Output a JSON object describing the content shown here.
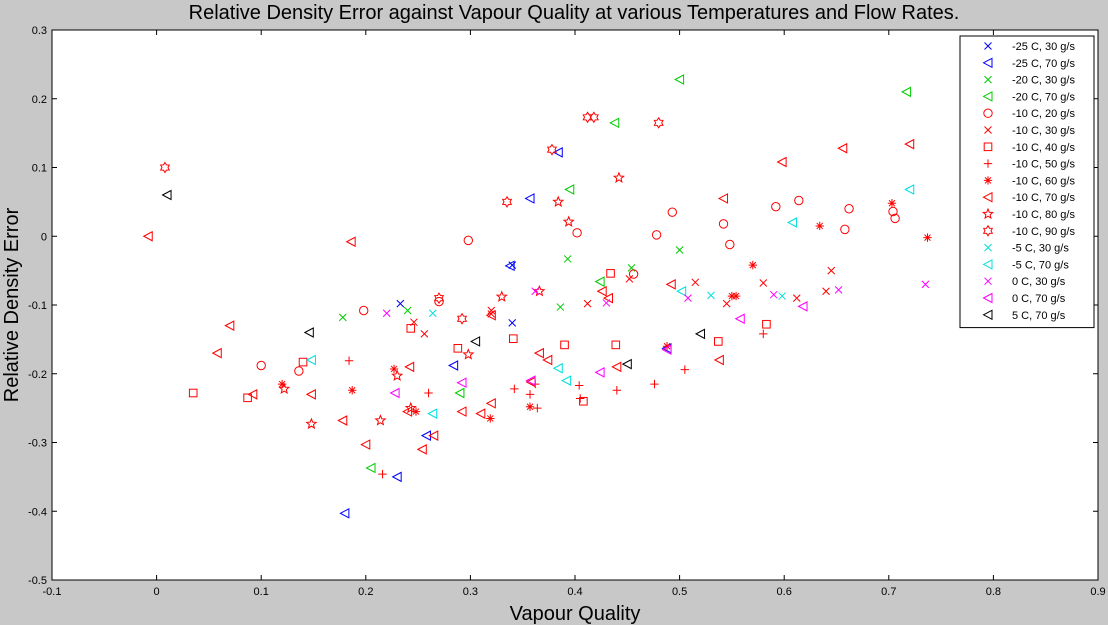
{
  "chart_data": {
    "type": "scatter",
    "title": "Relative Density Error against Vapour Quality at various Temperatures and Flow Rates.",
    "xlabel": "Vapour Quality",
    "ylabel": "Relative Density Error",
    "xlim": [
      -0.1,
      0.9
    ],
    "ylim": [
      -0.5,
      0.3
    ],
    "xticks": [
      -0.1,
      0,
      0.1,
      0.2,
      0.3,
      0.4,
      0.5,
      0.6,
      0.7,
      0.8,
      0.9
    ],
    "xtick_labels": [
      "-0.1",
      "0",
      "0.1",
      "0.2",
      "0.3",
      "0.4",
      "0.5",
      "0.6",
      "0.7",
      "0.8",
      "0.9"
    ],
    "yticks": [
      -0.5,
      -0.4,
      -0.3,
      -0.2,
      -0.1,
      0,
      0.1,
      0.2,
      0.3
    ],
    "ytick_labels": [
      "-0.5",
      "-0.4",
      "-0.3",
      "-0.2",
      "-0.1",
      "0",
      "0.1",
      "0.2",
      "0.3"
    ],
    "grid": false,
    "legend_position": "top-right",
    "series": [
      {
        "name": "-25 C, 30 g/s",
        "marker": "x",
        "color": "#0000ff",
        "points": [
          [
            0.233,
            -0.098
          ],
          [
            0.34,
            -0.126
          ],
          [
            0.34,
            -0.042
          ]
        ]
      },
      {
        "name": "-25 C, 70 g/s",
        "marker": "triangle-left",
        "color": "#0000ff",
        "points": [
          [
            0.18,
            -0.403
          ],
          [
            0.23,
            -0.35
          ],
          [
            0.258,
            -0.29
          ],
          [
            0.284,
            -0.188
          ],
          [
            0.338,
            -0.043
          ],
          [
            0.357,
            0.055
          ],
          [
            0.384,
            0.122
          ],
          [
            0.488,
            -0.163
          ]
        ]
      },
      {
        "name": "-20 C, 30 g/s",
        "marker": "x",
        "color": "#00cc00",
        "points": [
          [
            0.178,
            -0.118
          ],
          [
            0.24,
            -0.108
          ],
          [
            0.386,
            -0.103
          ],
          [
            0.393,
            -0.033
          ],
          [
            0.454,
            -0.046
          ],
          [
            0.5,
            -0.02
          ]
        ]
      },
      {
        "name": "-20 C, 70 g/s",
        "marker": "triangle-left",
        "color": "#00cc00",
        "points": [
          [
            0.205,
            -0.337
          ],
          [
            0.29,
            -0.228
          ],
          [
            0.395,
            0.068
          ],
          [
            0.424,
            -0.066
          ],
          [
            0.438,
            0.165
          ],
          [
            0.5,
            0.228
          ],
          [
            0.717,
            0.21
          ]
        ]
      },
      {
        "name": "-10 C, 20 g/s",
        "marker": "circle",
        "color": "#ff0000",
        "points": [
          [
            0.1,
            -0.188
          ],
          [
            0.136,
            -0.196
          ],
          [
            0.198,
            -0.108
          ],
          [
            0.27,
            -0.095
          ],
          [
            0.298,
            -0.006
          ],
          [
            0.402,
            0.005
          ],
          [
            0.456,
            -0.055
          ],
          [
            0.478,
            0.002
          ],
          [
            0.493,
            0.035
          ],
          [
            0.542,
            0.018
          ],
          [
            0.548,
            -0.012
          ],
          [
            0.592,
            0.043
          ],
          [
            0.614,
            0.052
          ],
          [
            0.658,
            0.01
          ],
          [
            0.662,
            0.04
          ],
          [
            0.704,
            0.036
          ],
          [
            0.706,
            0.026
          ]
        ]
      },
      {
        "name": "-10 C, 30 g/s",
        "marker": "x",
        "color": "#ff0000",
        "points": [
          [
            0.246,
            -0.125
          ],
          [
            0.256,
            -0.142
          ],
          [
            0.32,
            -0.108
          ],
          [
            0.32,
            -0.113
          ],
          [
            0.412,
            -0.098
          ],
          [
            0.452,
            -0.062
          ],
          [
            0.515,
            -0.067
          ],
          [
            0.545,
            -0.098
          ],
          [
            0.58,
            -0.068
          ],
          [
            0.612,
            -0.09
          ],
          [
            0.645,
            -0.05
          ],
          [
            0.64,
            -0.08
          ]
        ]
      },
      {
        "name": "-10 C, 40 g/s",
        "marker": "square",
        "color": "#ff0000",
        "points": [
          [
            0.035,
            -0.228
          ],
          [
            0.087,
            -0.235
          ],
          [
            0.14,
            -0.183
          ],
          [
            0.243,
            -0.134
          ],
          [
            0.288,
            -0.163
          ],
          [
            0.341,
            -0.149
          ],
          [
            0.39,
            -0.158
          ],
          [
            0.408,
            -0.24
          ],
          [
            0.434,
            -0.054
          ],
          [
            0.439,
            -0.158
          ],
          [
            0.537,
            -0.153
          ],
          [
            0.583,
            -0.128
          ]
        ]
      },
      {
        "name": "-10 C, 50 g/s",
        "marker": "plus",
        "color": "#ff0000",
        "points": [
          [
            0.184,
            -0.181
          ],
          [
            0.216,
            -0.346
          ],
          [
            0.26,
            -0.228
          ],
          [
            0.342,
            -0.222
          ],
          [
            0.357,
            -0.23
          ],
          [
            0.362,
            -0.215
          ],
          [
            0.364,
            -0.25
          ],
          [
            0.404,
            -0.217
          ],
          [
            0.405,
            -0.236
          ],
          [
            0.44,
            -0.224
          ],
          [
            0.476,
            -0.215
          ],
          [
            0.505,
            -0.194
          ],
          [
            0.58,
            -0.142
          ]
        ]
      },
      {
        "name": "-10 C, 60 g/s",
        "marker": "asterisk",
        "color": "#ff0000",
        "points": [
          [
            0.12,
            -0.215
          ],
          [
            0.187,
            -0.224
          ],
          [
            0.227,
            -0.193
          ],
          [
            0.248,
            -0.255
          ],
          [
            0.319,
            -0.265
          ],
          [
            0.357,
            -0.248
          ],
          [
            0.488,
            -0.16
          ],
          [
            0.55,
            -0.087
          ],
          [
            0.554,
            -0.087
          ],
          [
            0.57,
            -0.042
          ],
          [
            0.634,
            0.015
          ],
          [
            0.703,
            0.048
          ],
          [
            0.737,
            -0.002
          ]
        ]
      },
      {
        "name": "-10 C, 70 g/s",
        "marker": "triangle-left",
        "color": "#ff0000",
        "points": [
          [
            -0.008,
            0.0
          ],
          [
            0.058,
            -0.17
          ],
          [
            0.07,
            -0.13
          ],
          [
            0.092,
            -0.23
          ],
          [
            0.148,
            -0.23
          ],
          [
            0.178,
            -0.268
          ],
          [
            0.186,
            -0.008
          ],
          [
            0.2,
            -0.303
          ],
          [
            0.24,
            -0.255
          ],
          [
            0.242,
            -0.19
          ],
          [
            0.254,
            -0.31
          ],
          [
            0.265,
            -0.29
          ],
          [
            0.292,
            -0.255
          ],
          [
            0.31,
            -0.258
          ],
          [
            0.32,
            -0.243
          ],
          [
            0.32,
            -0.115
          ],
          [
            0.358,
            -0.212
          ],
          [
            0.366,
            -0.17
          ],
          [
            0.374,
            -0.18
          ],
          [
            0.426,
            -0.08
          ],
          [
            0.44,
            -0.19
          ],
          [
            0.492,
            -0.07
          ],
          [
            0.538,
            -0.18
          ],
          [
            0.542,
            0.055
          ],
          [
            0.598,
            0.108
          ],
          [
            0.656,
            0.128
          ],
          [
            0.72,
            0.134
          ],
          [
            0.432,
            -0.09
          ]
        ]
      },
      {
        "name": "-10 C, 80 g/s",
        "marker": "star",
        "color": "#ff0000",
        "points": [
          [
            0.122,
            -0.222
          ],
          [
            0.148,
            -0.273
          ],
          [
            0.214,
            -0.268
          ],
          [
            0.23,
            -0.203
          ],
          [
            0.243,
            -0.25
          ],
          [
            0.298,
            -0.172
          ],
          [
            0.33,
            -0.088
          ],
          [
            0.366,
            -0.08
          ],
          [
            0.384,
            0.05
          ],
          [
            0.394,
            0.021
          ],
          [
            0.442,
            0.085
          ]
        ]
      },
      {
        "name": "-10 C, 90 g/s",
        "marker": "hexagram",
        "color": "#ff0000",
        "points": [
          [
            0.008,
            0.1
          ],
          [
            0.27,
            -0.09
          ],
          [
            0.292,
            -0.12
          ],
          [
            0.335,
            0.05
          ],
          [
            0.378,
            0.126
          ],
          [
            0.412,
            0.173
          ],
          [
            0.418,
            0.173
          ],
          [
            0.48,
            0.165
          ]
        ]
      },
      {
        "name": "-5 C, 30 g/s",
        "marker": "x",
        "color": "#00e0e0",
        "points": [
          [
            0.264,
            -0.112
          ],
          [
            0.53,
            -0.086
          ],
          [
            0.598,
            -0.087
          ]
        ]
      },
      {
        "name": "-5 C, 70 g/s",
        "marker": "triangle-left",
        "color": "#00e0e0",
        "points": [
          [
            0.148,
            -0.18
          ],
          [
            0.264,
            -0.258
          ],
          [
            0.384,
            -0.192
          ],
          [
            0.392,
            -0.21
          ],
          [
            0.502,
            -0.08
          ],
          [
            0.608,
            0.02
          ],
          [
            0.72,
            0.068
          ]
        ]
      },
      {
        "name": "0 C, 30 g/s",
        "marker": "x",
        "color": "#ff00ff",
        "points": [
          [
            0.22,
            -0.112
          ],
          [
            0.362,
            -0.08
          ],
          [
            0.43,
            -0.097
          ],
          [
            0.508,
            -0.09
          ],
          [
            0.59,
            -0.085
          ],
          [
            0.652,
            -0.078
          ],
          [
            0.735,
            -0.07
          ]
        ]
      },
      {
        "name": "0 C, 70 g/s",
        "marker": "triangle-left",
        "color": "#ff00ff",
        "points": [
          [
            0.228,
            -0.228
          ],
          [
            0.292,
            -0.213
          ],
          [
            0.358,
            -0.21
          ],
          [
            0.424,
            -0.198
          ],
          [
            0.488,
            -0.165
          ],
          [
            0.558,
            -0.12
          ],
          [
            0.618,
            -0.102
          ]
        ]
      },
      {
        "name": "5 C, 70 g/s",
        "marker": "triangle-left",
        "color": "#000000",
        "points": [
          [
            0.01,
            0.06
          ],
          [
            0.146,
            -0.14
          ],
          [
            0.305,
            -0.153
          ],
          [
            0.45,
            -0.186
          ],
          [
            0.52,
            -0.142
          ]
        ]
      }
    ]
  }
}
